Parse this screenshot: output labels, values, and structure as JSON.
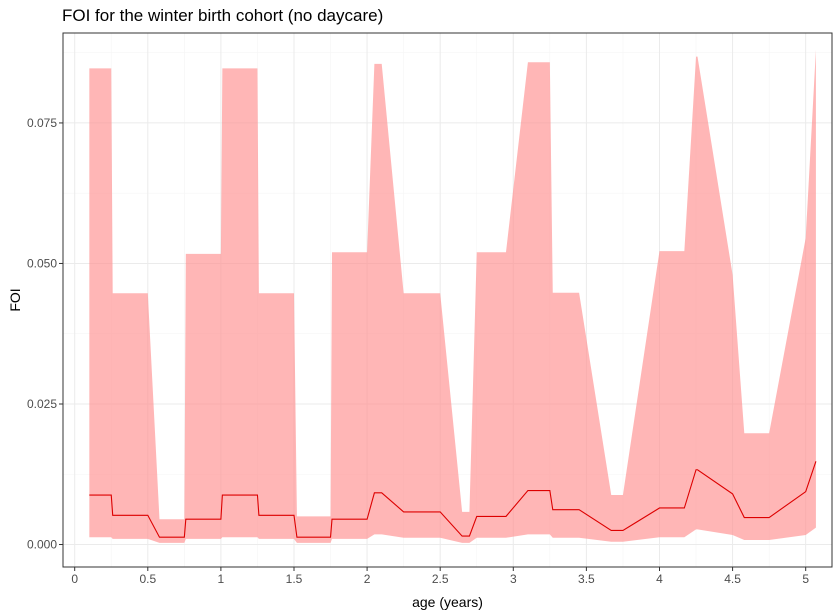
{
  "chart_data": {
    "type": "area",
    "title": "FOI for the winter birth cohort (no daycare)",
    "xlabel": "age (years)",
    "ylabel": "FOI",
    "xlim": [
      -0.08,
      5.18
    ],
    "ylim": [
      -0.004,
      0.091
    ],
    "x_ticks": [
      0,
      0.5,
      1,
      1.5,
      2,
      2.5,
      3,
      3.5,
      4,
      4.5,
      5
    ],
    "x_tick_labels": [
      "0",
      "0.5",
      "1",
      "1.5",
      "2",
      "2.5",
      "3",
      "3.5",
      "4",
      "4.5",
      "5"
    ],
    "y_ticks": [
      0,
      0.025,
      0.05,
      0.075
    ],
    "y_tick_labels": [
      "0.000",
      "0.025",
      "0.050",
      "0.075"
    ],
    "grid": true,
    "legend": "none",
    "colors": {
      "ribbon": "#ff8f8f",
      "line": "#dd0000",
      "panel_border": "#333333",
      "grid_major": "#ebebeb",
      "grid_minor": "#f5f5f5"
    },
    "series": [
      {
        "x": [
          0.1,
          0.25,
          0.26,
          0.5,
          0.58,
          0.75,
          0.76,
          1.0,
          1.01,
          1.25,
          1.26,
          1.5,
          1.52,
          1.75,
          1.76,
          2.0,
          2.05,
          2.1,
          2.25,
          2.5,
          2.65,
          2.7,
          2.75,
          2.95,
          3.1,
          3.25,
          3.27,
          3.45,
          3.67,
          3.75,
          4.0,
          4.17,
          4.25,
          4.26,
          4.5,
          4.58,
          4.75,
          5.0,
          5.07
        ],
        "y": [
          0.0088,
          0.0088,
          0.0052,
          0.0052,
          0.0013,
          0.0013,
          0.0045,
          0.0045,
          0.0088,
          0.0088,
          0.0052,
          0.0052,
          0.0013,
          0.0013,
          0.0045,
          0.0045,
          0.0092,
          0.0092,
          0.0058,
          0.0058,
          0.0015,
          0.0015,
          0.005,
          0.005,
          0.0096,
          0.0096,
          0.0062,
          0.0062,
          0.0025,
          0.0025,
          0.0065,
          0.0065,
          0.0133,
          0.0133,
          0.009,
          0.0048,
          0.0048,
          0.0094,
          0.0148
        ],
        "lower": [
          0.0013,
          0.0013,
          0.001,
          0.001,
          0.0003,
          0.0003,
          0.001,
          0.001,
          0.0013,
          0.0013,
          0.001,
          0.001,
          0.0003,
          0.0003,
          0.001,
          0.001,
          0.0018,
          0.0018,
          0.0012,
          0.0012,
          0.0003,
          0.0003,
          0.0012,
          0.0012,
          0.0018,
          0.0018,
          0.0012,
          0.0012,
          0.0005,
          0.0005,
          0.0013,
          0.0013,
          0.0027,
          0.0027,
          0.0017,
          0.0008,
          0.0008,
          0.0017,
          0.003
        ],
        "upper": [
          0.0847,
          0.0847,
          0.0447,
          0.0447,
          0.0045,
          0.0045,
          0.0517,
          0.0517,
          0.0847,
          0.0847,
          0.0447,
          0.0447,
          0.005,
          0.005,
          0.052,
          0.052,
          0.0855,
          0.0855,
          0.0447,
          0.0447,
          0.0058,
          0.0058,
          0.052,
          0.052,
          0.0858,
          0.0858,
          0.0448,
          0.0448,
          0.0088,
          0.0088,
          0.0522,
          0.0522,
          0.0868,
          0.0868,
          0.048,
          0.0198,
          0.0198,
          0.0545,
          0.088
        ]
      }
    ]
  }
}
